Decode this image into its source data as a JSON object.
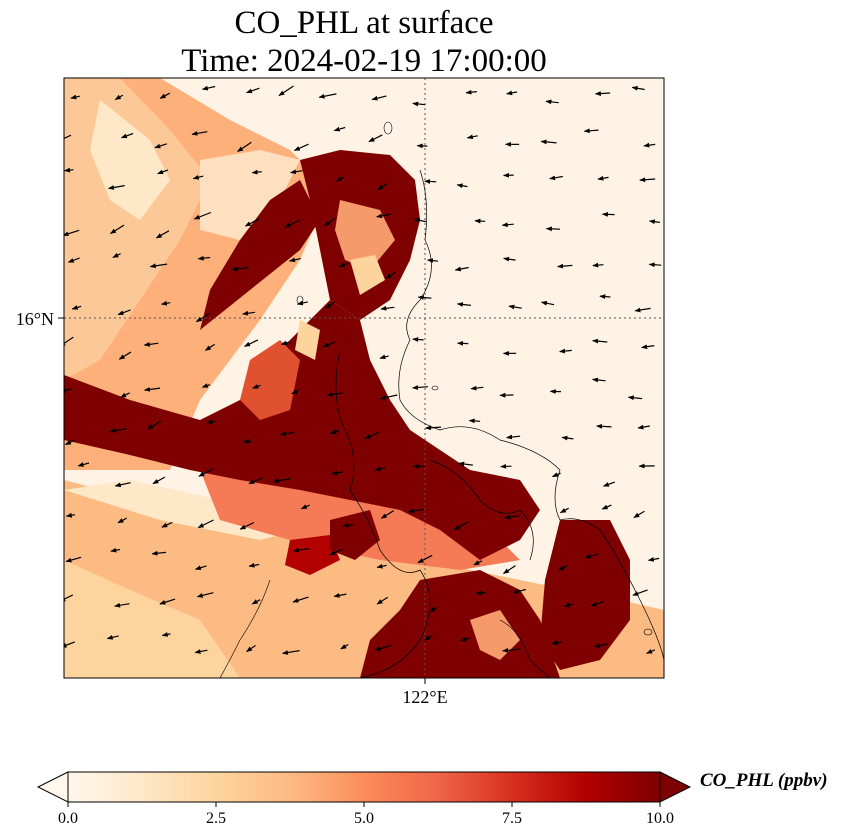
{
  "title": {
    "line1": "CO_PHL at surface",
    "line2": "Time: 2024-02-19 17:00:00"
  },
  "axes": {
    "lat_tick": "16°N",
    "lon_tick": "122°E"
  },
  "colorbar": {
    "label": "CO_PHL (ppbv)",
    "ticks": [
      "0.0",
      "2.5",
      "5.0",
      "7.5",
      "10.0"
    ],
    "vmin": 0,
    "vmax": 10,
    "colormap": "OrRd",
    "extend": "both"
  },
  "colors": {
    "low": "#fff7ec",
    "mid_low": "#fdd49e",
    "mid": "#fc8d59",
    "mid_high": "#d7301f",
    "high": "#7f0000",
    "coastline": "#000000",
    "gridline": "#555555"
  },
  "chart_data": {
    "type": "heatmap",
    "variable": "CO_PHL",
    "units": "ppbv",
    "level": "surface",
    "time": "2024-02-19 17:00:00",
    "colorbar_range": [
      0,
      10
    ],
    "gridlines": [
      "16°N",
      "122°E"
    ],
    "overlays": [
      "coastlines",
      "wind vectors"
    ]
  }
}
